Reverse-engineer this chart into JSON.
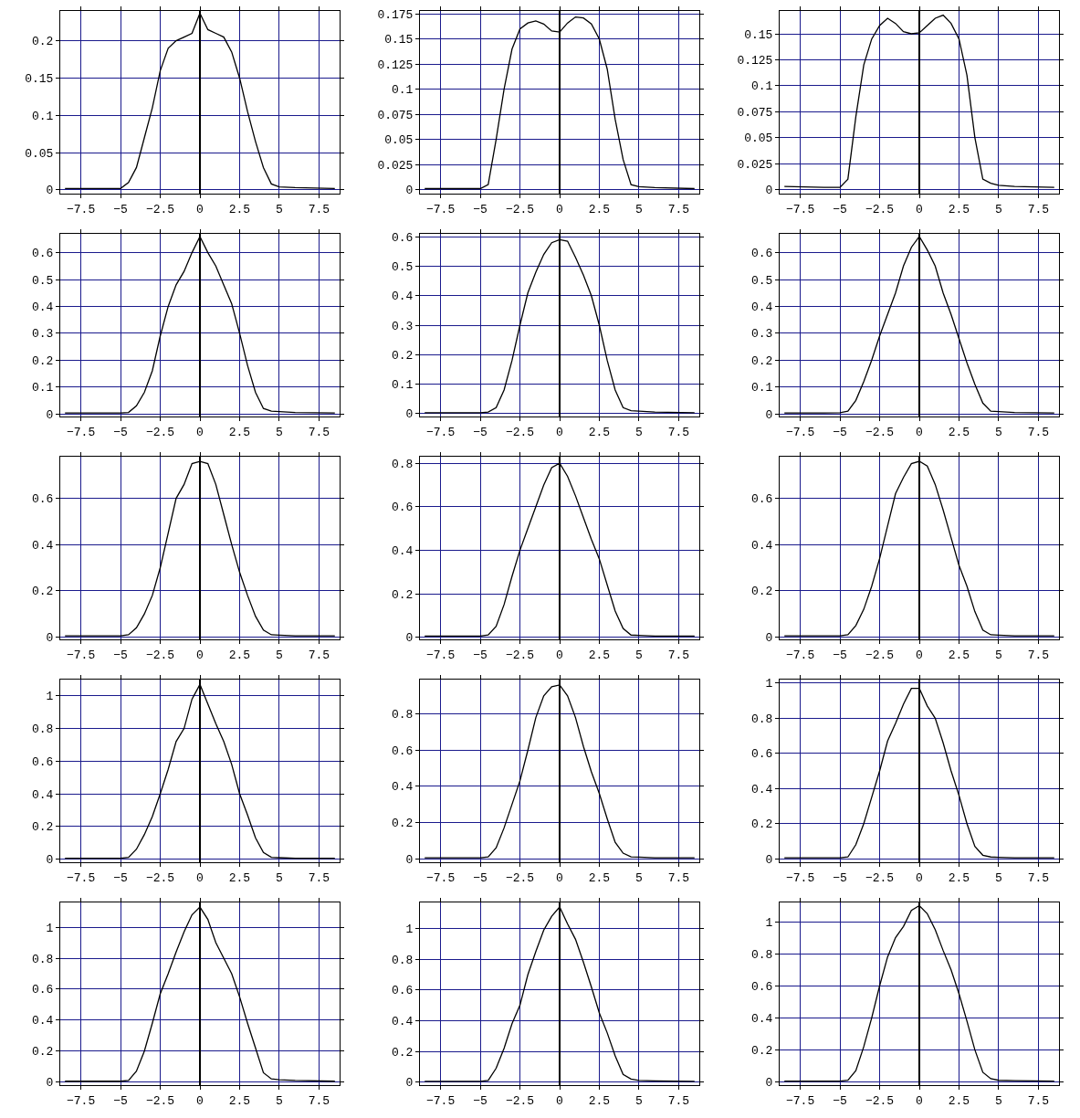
{
  "chart_data": [
    {
      "type": "line",
      "color": "#000000",
      "grid": true,
      "xlim": [
        -8.8,
        8.8
      ],
      "xticks": [
        -7.5,
        -5,
        -2.5,
        0,
        2.5,
        5,
        7.5
      ],
      "ylim": [
        -0.005,
        0.24
      ],
      "yticks": [
        0,
        0.05,
        0.1,
        0.15,
        0.2
      ],
      "x": [
        -8.5,
        -6,
        -5,
        -4.5,
        -4,
        -3.5,
        -3,
        -2.5,
        -2,
        -1.5,
        -1,
        -0.5,
        0,
        0.5,
        1,
        1.5,
        2,
        2.5,
        3,
        3.5,
        4,
        4.5,
        5,
        6,
        8.5
      ],
      "values": [
        0.002,
        0.002,
        0.002,
        0.01,
        0.03,
        0.07,
        0.11,
        0.16,
        0.19,
        0.2,
        0.205,
        0.21,
        0.237,
        0.215,
        0.21,
        0.205,
        0.185,
        0.15,
        0.105,
        0.065,
        0.03,
        0.008,
        0.004,
        0.003,
        0.002
      ]
    },
    {
      "type": "line",
      "color": "#000000",
      "grid": true,
      "xlim": [
        -8.8,
        8.8
      ],
      "xticks": [
        -7.5,
        -5,
        -2.5,
        0,
        2.5,
        5,
        7.5
      ],
      "ylim": [
        -0.004,
        0.178
      ],
      "yticks": [
        0,
        0.025,
        0.05,
        0.075,
        0.1,
        0.125,
        0.15,
        0.175
      ],
      "x": [
        -8.5,
        -6,
        -5,
        -4.5,
        -4,
        -3.5,
        -3,
        -2.5,
        -2,
        -1.5,
        -1,
        -0.5,
        0,
        0.5,
        1,
        1.5,
        2,
        2.5,
        3,
        3.5,
        4,
        4.5,
        5,
        6,
        8.5
      ],
      "values": [
        0.001,
        0.001,
        0.001,
        0.005,
        0.05,
        0.1,
        0.14,
        0.16,
        0.166,
        0.168,
        0.165,
        0.158,
        0.157,
        0.166,
        0.172,
        0.171,
        0.165,
        0.15,
        0.12,
        0.07,
        0.03,
        0.005,
        0.003,
        0.002,
        0.001
      ]
    },
    {
      "type": "line",
      "color": "#000000",
      "grid": true,
      "xlim": [
        -8.8,
        8.8
      ],
      "xticks": [
        -7.5,
        -5,
        -2.5,
        0,
        2.5,
        5,
        7.5
      ],
      "ylim": [
        -0.004,
        0.172
      ],
      "yticks": [
        0,
        0.025,
        0.05,
        0.075,
        0.1,
        0.125,
        0.15
      ],
      "x": [
        -8.5,
        -6,
        -5,
        -4.5,
        -4,
        -3.5,
        -3,
        -2.5,
        -2,
        -1.5,
        -1,
        -0.5,
        0,
        0.5,
        1,
        1.5,
        2,
        2.5,
        3,
        3.5,
        4,
        4.5,
        5,
        6,
        8.5
      ],
      "values": [
        0.003,
        0.002,
        0.002,
        0.01,
        0.07,
        0.12,
        0.145,
        0.158,
        0.165,
        0.16,
        0.152,
        0.15,
        0.151,
        0.158,
        0.165,
        0.168,
        0.16,
        0.145,
        0.11,
        0.05,
        0.01,
        0.006,
        0.004,
        0.003,
        0.002
      ]
    },
    {
      "type": "line",
      "color": "#000000",
      "grid": true,
      "xlim": [
        -8.8,
        8.8
      ],
      "xticks": [
        -7.5,
        -5,
        -2.5,
        0,
        2.5,
        5,
        7.5
      ],
      "ylim": [
        -0.01,
        0.67
      ],
      "yticks": [
        0,
        0.1,
        0.2,
        0.3,
        0.4,
        0.5,
        0.6
      ],
      "x": [
        -8.5,
        -6,
        -5,
        -4.5,
        -4,
        -3.5,
        -3,
        -2.5,
        -2,
        -1.5,
        -1,
        -0.5,
        0,
        0.5,
        1,
        1.5,
        2,
        2.5,
        3,
        3.5,
        4,
        4.5,
        5,
        6,
        8.5
      ],
      "values": [
        0.003,
        0.003,
        0.003,
        0.005,
        0.03,
        0.08,
        0.16,
        0.29,
        0.4,
        0.48,
        0.53,
        0.6,
        0.66,
        0.6,
        0.55,
        0.48,
        0.41,
        0.3,
        0.18,
        0.08,
        0.02,
        0.01,
        0.008,
        0.005,
        0.003
      ]
    },
    {
      "type": "line",
      "color": "#000000",
      "grid": true,
      "xlim": [
        -8.8,
        8.8
      ],
      "xticks": [
        -7.5,
        -5,
        -2.5,
        0,
        2.5,
        5,
        7.5
      ],
      "ylim": [
        -0.01,
        0.61
      ],
      "yticks": [
        0,
        0.1,
        0.2,
        0.3,
        0.4,
        0.5,
        0.6
      ],
      "x": [
        -8.5,
        -6,
        -5,
        -4.5,
        -4,
        -3.5,
        -3,
        -2.5,
        -2,
        -1.5,
        -1,
        -0.5,
        0,
        0.5,
        1,
        1.5,
        2,
        2.5,
        3,
        3.5,
        4,
        4.5,
        5,
        6,
        8.5
      ],
      "values": [
        0.003,
        0.003,
        0.003,
        0.005,
        0.02,
        0.08,
        0.18,
        0.3,
        0.41,
        0.48,
        0.54,
        0.58,
        0.59,
        0.585,
        0.53,
        0.47,
        0.4,
        0.3,
        0.18,
        0.08,
        0.02,
        0.01,
        0.008,
        0.005,
        0.003
      ]
    },
    {
      "type": "line",
      "color": "#000000",
      "grid": true,
      "xlim": [
        -8.8,
        8.8
      ],
      "xticks": [
        -7.5,
        -5,
        -2.5,
        0,
        2.5,
        5,
        7.5
      ],
      "ylim": [
        -0.01,
        0.67
      ],
      "yticks": [
        0,
        0.1,
        0.2,
        0.3,
        0.4,
        0.5,
        0.6
      ],
      "x": [
        -8.5,
        -6,
        -5,
        -4.5,
        -4,
        -3.5,
        -3,
        -2.5,
        -2,
        -1.5,
        -1,
        -0.5,
        0,
        0.5,
        1,
        1.5,
        2,
        2.5,
        3,
        3.5,
        4,
        4.5,
        5,
        6,
        8.5
      ],
      "values": [
        0.003,
        0.003,
        0.004,
        0.01,
        0.05,
        0.12,
        0.2,
        0.29,
        0.37,
        0.45,
        0.55,
        0.62,
        0.66,
        0.61,
        0.55,
        0.45,
        0.37,
        0.28,
        0.19,
        0.11,
        0.04,
        0.01,
        0.008,
        0.005,
        0.003
      ]
    },
    {
      "type": "line",
      "color": "#000000",
      "grid": true,
      "xlim": [
        -8.8,
        8.8
      ],
      "xticks": [
        -7.5,
        -5,
        -2.5,
        0,
        2.5,
        5,
        7.5
      ],
      "ylim": [
        -0.01,
        0.78
      ],
      "yticks": [
        0,
        0.2,
        0.4,
        0.6
      ],
      "x": [
        -8.5,
        -6,
        -5,
        -4.5,
        -4,
        -3.5,
        -3,
        -2.5,
        -2,
        -1.5,
        -1,
        -0.5,
        0,
        0.5,
        1,
        1.5,
        2,
        2.5,
        3,
        3.5,
        4,
        4.5,
        5,
        6,
        8.5
      ],
      "values": [
        0.005,
        0.005,
        0.005,
        0.01,
        0.04,
        0.1,
        0.18,
        0.3,
        0.45,
        0.6,
        0.66,
        0.75,
        0.76,
        0.75,
        0.66,
        0.53,
        0.4,
        0.28,
        0.18,
        0.09,
        0.03,
        0.01,
        0.008,
        0.005,
        0.005
      ]
    },
    {
      "type": "line",
      "color": "#000000",
      "grid": true,
      "xlim": [
        -8.8,
        8.8
      ],
      "xticks": [
        -7.5,
        -5,
        -2.5,
        0,
        2.5,
        5,
        7.5
      ],
      "ylim": [
        -0.01,
        0.83
      ],
      "yticks": [
        0,
        0.2,
        0.4,
        0.6,
        0.8
      ],
      "x": [
        -8.5,
        -6,
        -5,
        -4.5,
        -4,
        -3.5,
        -3,
        -2.5,
        -2,
        -1.5,
        -1,
        -0.5,
        0,
        0.5,
        1,
        1.5,
        2,
        2.5,
        3,
        3.5,
        4,
        4.5,
        5,
        6,
        8.5
      ],
      "values": [
        0.005,
        0.005,
        0.005,
        0.01,
        0.05,
        0.15,
        0.28,
        0.4,
        0.5,
        0.6,
        0.7,
        0.78,
        0.8,
        0.74,
        0.65,
        0.55,
        0.45,
        0.36,
        0.24,
        0.12,
        0.04,
        0.01,
        0.008,
        0.005,
        0.005
      ]
    },
    {
      "type": "line",
      "color": "#000000",
      "grid": true,
      "xlim": [
        -8.8,
        8.8
      ],
      "xticks": [
        -7.5,
        -5,
        -2.5,
        0,
        2.5,
        5,
        7.5
      ],
      "ylim": [
        -0.01,
        0.78
      ],
      "yticks": [
        0,
        0.2,
        0.4,
        0.6
      ],
      "x": [
        -8.5,
        -6,
        -5,
        -4.5,
        -4,
        -3.5,
        -3,
        -2.5,
        -2,
        -1.5,
        -1,
        -0.5,
        0,
        0.5,
        1,
        1.5,
        2,
        2.5,
        3,
        3.5,
        4,
        4.5,
        5,
        6,
        8.5
      ],
      "values": [
        0.005,
        0.005,
        0.005,
        0.01,
        0.05,
        0.12,
        0.22,
        0.34,
        0.48,
        0.62,
        0.69,
        0.75,
        0.76,
        0.74,
        0.66,
        0.55,
        0.43,
        0.31,
        0.22,
        0.11,
        0.03,
        0.01,
        0.008,
        0.005,
        0.005
      ]
    },
    {
      "type": "line",
      "color": "#000000",
      "grid": true,
      "xlim": [
        -8.8,
        8.8
      ],
      "xticks": [
        -7.5,
        -5,
        -2.5,
        0,
        2.5,
        5,
        7.5
      ],
      "ylim": [
        -0.02,
        1.1
      ],
      "yticks": [
        0,
        0.2,
        0.4,
        0.6,
        0.8,
        1
      ],
      "x": [
        -8.5,
        -6,
        -5,
        -4.5,
        -4,
        -3.5,
        -3,
        -2.5,
        -2,
        -1.5,
        -1,
        -0.5,
        0,
        0.5,
        1,
        1.5,
        2,
        2.5,
        3,
        3.5,
        4,
        4.5,
        5,
        6,
        8.5
      ],
      "values": [
        0.005,
        0.005,
        0.005,
        0.01,
        0.06,
        0.15,
        0.26,
        0.4,
        0.55,
        0.72,
        0.8,
        0.98,
        1.07,
        0.95,
        0.83,
        0.72,
        0.58,
        0.4,
        0.27,
        0.13,
        0.04,
        0.01,
        0.008,
        0.005,
        0.005
      ]
    },
    {
      "type": "line",
      "color": "#000000",
      "grid": true,
      "xlim": [
        -8.8,
        8.8
      ],
      "xticks": [
        -7.5,
        -5,
        -2.5,
        0,
        2.5,
        5,
        7.5
      ],
      "ylim": [
        -0.02,
        0.99
      ],
      "yticks": [
        0,
        0.2,
        0.4,
        0.6,
        0.8
      ],
      "x": [
        -8.5,
        -6,
        -5,
        -4.5,
        -4,
        -3.5,
        -3,
        -2.5,
        -2,
        -1.5,
        -1,
        -0.5,
        0,
        0.5,
        1,
        1.5,
        2,
        2.5,
        3,
        3.5,
        4,
        4.5,
        5,
        6,
        8.5
      ],
      "values": [
        0.005,
        0.005,
        0.005,
        0.01,
        0.06,
        0.17,
        0.3,
        0.43,
        0.6,
        0.78,
        0.9,
        0.95,
        0.96,
        0.9,
        0.78,
        0.62,
        0.48,
        0.36,
        0.22,
        0.09,
        0.03,
        0.01,
        0.008,
        0.005,
        0.005
      ]
    },
    {
      "type": "line",
      "color": "#000000",
      "grid": true,
      "xlim": [
        -8.8,
        8.8
      ],
      "xticks": [
        -7.5,
        -5,
        -2.5,
        0,
        2.5,
        5,
        7.5
      ],
      "ylim": [
        -0.02,
        1.02
      ],
      "yticks": [
        0,
        0.2,
        0.4,
        0.6,
        0.8,
        1
      ],
      "x": [
        -8.5,
        -6,
        -5,
        -4.5,
        -4,
        -3.5,
        -3,
        -2.5,
        -2,
        -1.5,
        -1,
        -0.5,
        0,
        0.5,
        1,
        1.5,
        2,
        2.5,
        3,
        3.5,
        4,
        4.5,
        5,
        6,
        8.5
      ],
      "values": [
        0.005,
        0.005,
        0.005,
        0.01,
        0.08,
        0.2,
        0.35,
        0.5,
        0.67,
        0.77,
        0.88,
        0.97,
        0.97,
        0.87,
        0.8,
        0.66,
        0.5,
        0.36,
        0.2,
        0.07,
        0.02,
        0.01,
        0.008,
        0.005,
        0.005
      ]
    },
    {
      "type": "line",
      "color": "#000000",
      "grid": true,
      "xlim": [
        -8.8,
        8.8
      ],
      "xticks": [
        -7.5,
        -5,
        -2.5,
        0,
        2.5,
        5,
        7.5
      ],
      "ylim": [
        -0.02,
        1.16
      ],
      "yticks": [
        0,
        0.2,
        0.4,
        0.6,
        0.8,
        1
      ],
      "x": [
        -8.5,
        -6,
        -5,
        -4.5,
        -4,
        -3.5,
        -3,
        -2.5,
        -2,
        -1.5,
        -1,
        -0.5,
        0,
        0.5,
        1,
        1.5,
        2,
        2.5,
        3,
        3.5,
        4,
        4.5,
        5,
        6,
        8.5
      ],
      "values": [
        0.005,
        0.005,
        0.005,
        0.01,
        0.07,
        0.2,
        0.38,
        0.57,
        0.7,
        0.84,
        0.97,
        1.08,
        1.13,
        1.05,
        0.9,
        0.8,
        0.7,
        0.55,
        0.38,
        0.22,
        0.06,
        0.02,
        0.015,
        0.01,
        0.005
      ]
    },
    {
      "type": "line",
      "color": "#000000",
      "grid": true,
      "xlim": [
        -8.8,
        8.8
      ],
      "xticks": [
        -7.5,
        -5,
        -2.5,
        0,
        2.5,
        5,
        7.5
      ],
      "ylim": [
        -0.02,
        1.17
      ],
      "yticks": [
        0,
        0.2,
        0.4,
        0.6,
        0.8,
        1
      ],
      "x": [
        -8.5,
        -6,
        -5,
        -4.5,
        -4,
        -3.5,
        -3,
        -2.5,
        -2,
        -1.5,
        -1,
        -0.5,
        0,
        0.5,
        1,
        1.5,
        2,
        2.5,
        3,
        3.5,
        4,
        4.5,
        5,
        6,
        8.5
      ],
      "values": [
        0.005,
        0.005,
        0.005,
        0.01,
        0.09,
        0.22,
        0.38,
        0.5,
        0.7,
        0.85,
        0.99,
        1.08,
        1.14,
        1.03,
        0.93,
        0.78,
        0.62,
        0.45,
        0.32,
        0.17,
        0.05,
        0.02,
        0.01,
        0.008,
        0.005
      ]
    },
    {
      "type": "line",
      "color": "#000000",
      "grid": true,
      "xlim": [
        -8.8,
        8.8
      ],
      "xticks": [
        -7.5,
        -5,
        -2.5,
        0,
        2.5,
        5,
        7.5
      ],
      "ylim": [
        -0.02,
        1.12
      ],
      "yticks": [
        0,
        0.2,
        0.4,
        0.6,
        0.8,
        1
      ],
      "x": [
        -8.5,
        -6,
        -5,
        -4.5,
        -4,
        -3.5,
        -3,
        -2.5,
        -2,
        -1.5,
        -1,
        -0.5,
        0,
        0.5,
        1,
        1.5,
        2,
        2.5,
        3,
        3.5,
        4,
        4.5,
        5,
        6,
        8.5
      ],
      "values": [
        0.005,
        0.005,
        0.005,
        0.01,
        0.07,
        0.22,
        0.4,
        0.6,
        0.78,
        0.9,
        0.97,
        1.07,
        1.1,
        1.05,
        0.95,
        0.82,
        0.7,
        0.55,
        0.38,
        0.2,
        0.06,
        0.02,
        0.01,
        0.008,
        0.005
      ]
    }
  ]
}
